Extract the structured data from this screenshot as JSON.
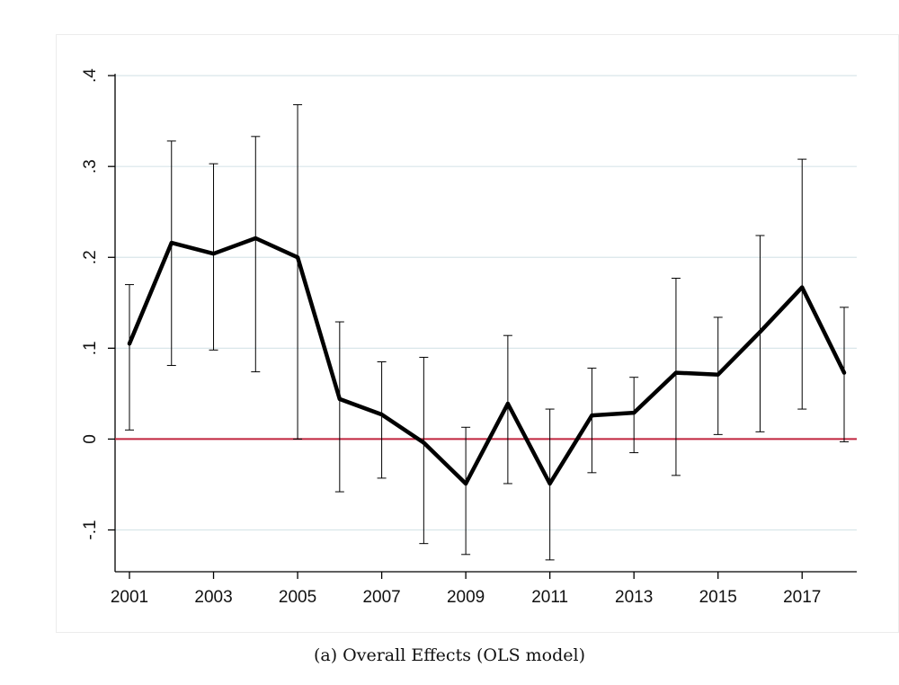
{
  "caption": "(a) Overall Effects (OLS model)",
  "chart_data": {
    "type": "line",
    "title": "",
    "xlabel": "",
    "ylabel": "",
    "x": [
      2001,
      2002,
      2003,
      2004,
      2005,
      2006,
      2007,
      2008,
      2009,
      2010,
      2011,
      2012,
      2013,
      2014,
      2015,
      2016,
      2017,
      2018
    ],
    "series": [
      {
        "values": [
          0.105,
          0.216,
          0.204,
          0.221,
          0.2,
          0.044,
          0.027,
          -0.004,
          -0.049,
          0.039,
          -0.049,
          0.026,
          0.029,
          0.073,
          0.071,
          0.118,
          0.167,
          0.073
        ],
        "lower": [
          0.01,
          0.081,
          0.098,
          0.074,
          0.0,
          -0.058,
          -0.043,
          -0.115,
          -0.127,
          -0.049,
          -0.133,
          -0.037,
          -0.015,
          -0.04,
          0.005,
          0.008,
          0.033,
          -0.003
        ],
        "upper": [
          0.17,
          0.328,
          0.303,
          0.333,
          0.368,
          0.129,
          0.085,
          0.09,
          0.013,
          0.114,
          0.033,
          0.078,
          0.068,
          0.177,
          0.134,
          0.224,
          0.308,
          0.145
        ],
        "color": "#000000"
      }
    ],
    "reference_line": {
      "y": 0,
      "color": "#c0243e"
    },
    "xticks": [
      2001,
      2003,
      2005,
      2007,
      2009,
      2011,
      2013,
      2015,
      2017
    ],
    "xtick_labels": [
      "2001",
      "2003",
      "2005",
      "2007",
      "2009",
      "2011",
      "2013",
      "2015",
      "2017"
    ],
    "yticks": [
      -0.1,
      0,
      0.1,
      0.2,
      0.3,
      0.4
    ],
    "ytick_labels": [
      "-.1",
      "0",
      ".1",
      ".2",
      ".3",
      ".4"
    ],
    "xlim": [
      2001,
      2018
    ],
    "ylim": [
      -0.146,
      0.41
    ],
    "grid": true,
    "gridline_color": "#d9e6ea",
    "legend": "none"
  }
}
